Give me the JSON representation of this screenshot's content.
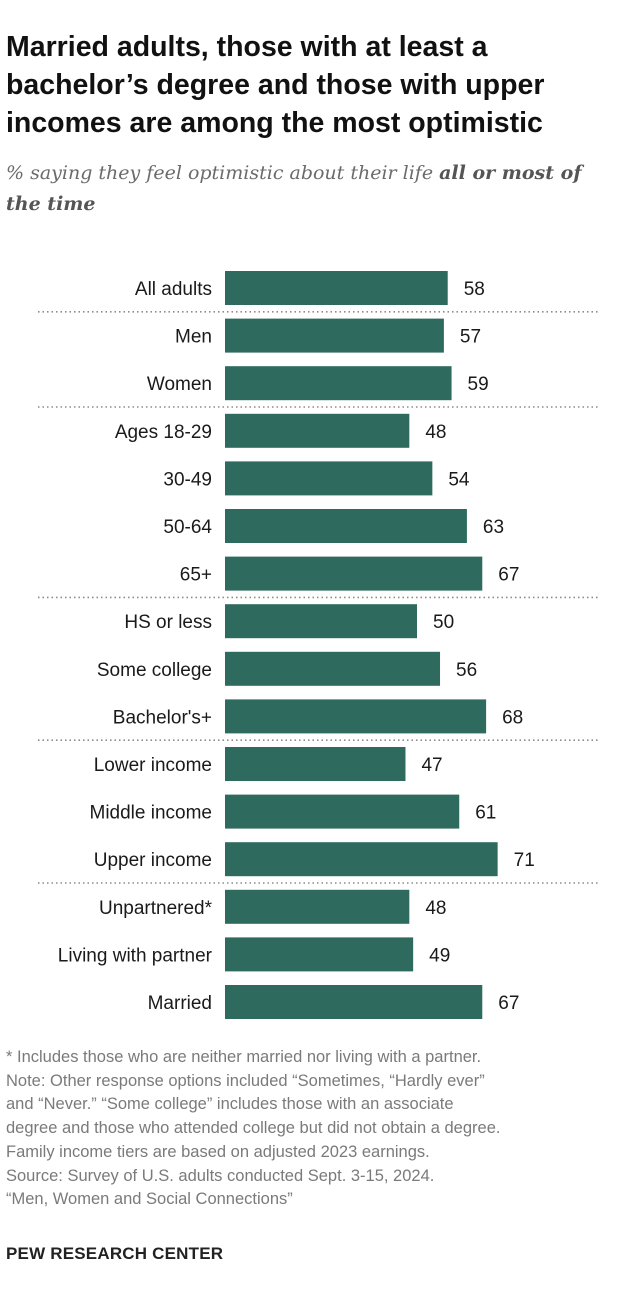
{
  "header": {
    "title": "Married adults, those with at least a bachelor’s degree and those with upper incomes are among the most optimistic",
    "subtitle_plain": "% saying they feel optimistic about their life ",
    "subtitle_bold": "all or most of the time"
  },
  "chart_data": {
    "type": "bar",
    "orientation": "horizontal",
    "categories": [
      "All adults",
      "Men",
      "Women",
      "Ages 18-29",
      "30-49",
      "50-64",
      "65+",
      "HS or less",
      "Some college",
      "Bachelor's+",
      "Lower income",
      "Middle income",
      "Upper income",
      "Unpartnered*",
      "Living with partner",
      "Married"
    ],
    "values": [
      58,
      57,
      59,
      48,
      54,
      63,
      67,
      50,
      56,
      68,
      47,
      61,
      71,
      48,
      49,
      67
    ],
    "groups": [
      [
        0
      ],
      [
        1,
        2
      ],
      [
        3,
        4,
        5,
        6
      ],
      [
        7,
        8,
        9
      ],
      [
        10,
        11,
        12
      ],
      [
        13,
        14,
        15
      ]
    ],
    "value_labels": true,
    "bar_color": "#2e6b5e",
    "separator_style": "dotted",
    "grid": false
  },
  "notes": [
    "* Includes those who are neither married nor living with a partner.",
    "Note: Other response options included “Sometimes, “Hardly ever”",
    "and “Never.” “Some college” includes those with an associate",
    "degree and those who attended college but did not obtain a degree.",
    "Family income tiers are based on adjusted 2023 earnings.",
    "Source: Survey of U.S. adults conducted Sept. 3-15, 2024.",
    "“Men, Women and Social Connections”"
  ],
  "footer": {
    "brand": "PEW RESEARCH CENTER"
  }
}
